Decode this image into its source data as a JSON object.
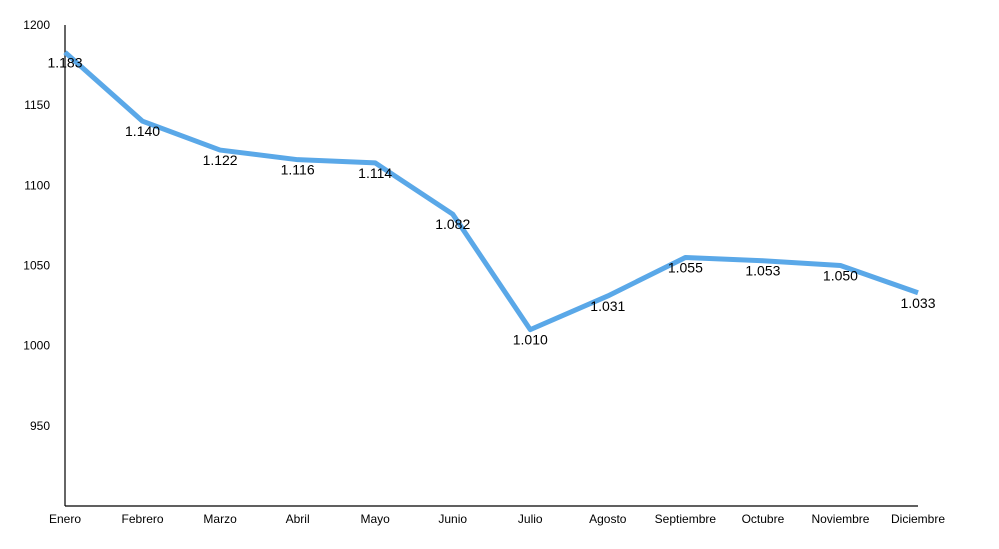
{
  "chart_data": {
    "type": "line",
    "categories": [
      "Enero",
      "Febrero",
      "Marzo",
      "Abril",
      "Mayo",
      "Junio",
      "Julio",
      "Agosto",
      "Septiembre",
      "Octubre",
      "Noviembre",
      "Diciembre"
    ],
    "series": [
      {
        "values": [
          1183,
          1140,
          1122,
          1116,
          1114,
          1082,
          1010,
          1031,
          1055,
          1053,
          1050,
          1033
        ],
        "labels": [
          "1.183",
          "1.140",
          "1.122",
          "1.116",
          "1.114",
          "1.082",
          "1.010",
          "1.031",
          "1.055",
          "1.053",
          "1.050",
          "1.033"
        ],
        "color": "#5aa8e8"
      }
    ],
    "yticks": [
      "950",
      "1000",
      "1050",
      "1100",
      "1150",
      "1200"
    ],
    "ylim": [
      900,
      1200
    ],
    "grid": false,
    "legend": "none",
    "title": "",
    "xlabel": "",
    "ylabel": ""
  }
}
